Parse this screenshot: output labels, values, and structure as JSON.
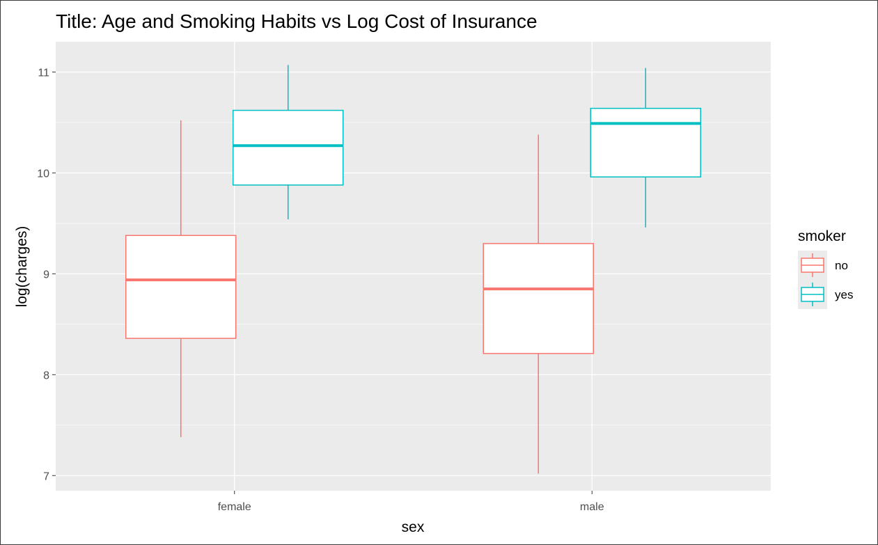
{
  "chart_data": {
    "type": "box",
    "title": "Title: Age and Smoking Habits vs Log Cost of Insurance",
    "xlabel": "sex",
    "ylabel": "log(charges)",
    "categories": [
      "female",
      "male"
    ],
    "ylim": [
      6.85,
      11.3
    ],
    "yticks": [
      7,
      8,
      9,
      10,
      11
    ],
    "grid": true,
    "legend": {
      "title": "smoker",
      "position": "right",
      "entries": [
        {
          "label": "no",
          "color": "#F8766D"
        },
        {
          "label": "yes",
          "color": "#00BFC4"
        }
      ]
    },
    "series": [
      {
        "name": "no",
        "color": "#F8766D",
        "boxes": [
          {
            "category": "female",
            "whisker_low": 7.38,
            "q1": 8.36,
            "median": 8.94,
            "q3": 9.38,
            "whisker_high": 10.52
          },
          {
            "category": "male",
            "whisker_low": 7.02,
            "q1": 8.21,
            "median": 8.85,
            "q3": 9.3,
            "whisker_high": 10.38
          }
        ]
      },
      {
        "name": "yes",
        "color": "#00BFC4",
        "boxes": [
          {
            "category": "female",
            "whisker_low": 9.54,
            "q1": 9.88,
            "median": 10.27,
            "q3": 10.62,
            "whisker_high": 11.07
          },
          {
            "category": "male",
            "whisker_low": 9.46,
            "q1": 9.96,
            "median": 10.49,
            "q3": 10.64,
            "whisker_high": 11.04
          }
        ]
      }
    ]
  }
}
